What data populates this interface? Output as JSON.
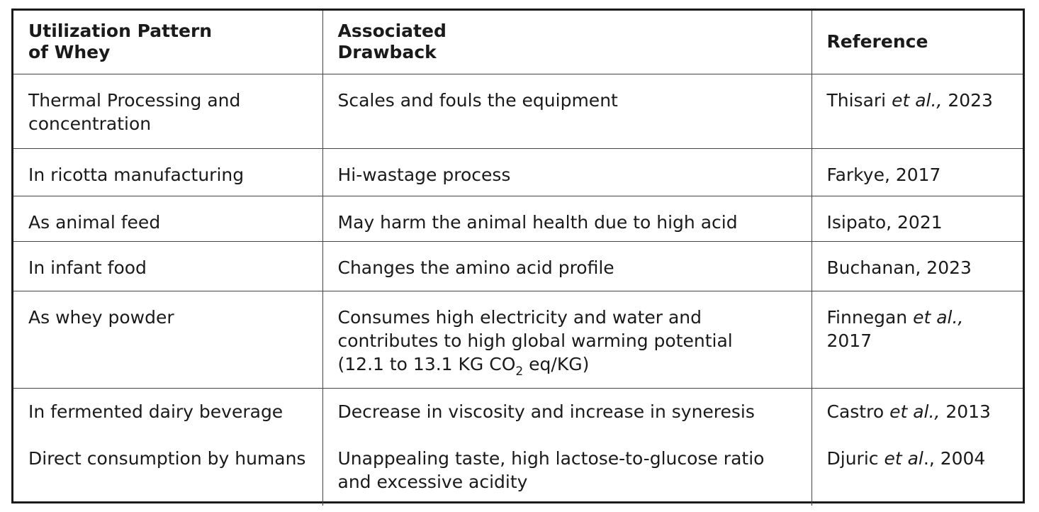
{
  "headers": {
    "col1": [
      "Utilization Pattern",
      "of Whey"
    ],
    "col2": [
      "Associated",
      "Drawback"
    ],
    "col3": "Reference"
  },
  "rows": [
    {
      "pattern": "Thermal Processing and concentration",
      "drawback": "Scales and fouls the equipment",
      "ref_author": "Thisari",
      "ref_etal": "et al.,",
      "ref_year": "2023"
    },
    {
      "pattern": "In ricotta manufacturing",
      "drawback": "Hi-wastage process",
      "ref_author": "Farkye, 2017"
    },
    {
      "pattern": "As animal feed",
      "drawback": "May harm the animal health due to high acid",
      "ref_author": "Isipato, 2021"
    },
    {
      "pattern": "In infant food",
      "drawback": "Changes the amino acid profile",
      "ref_author": "Buchanan, 2023"
    },
    {
      "pattern": "As whey powder",
      "drawback_lines": [
        "Consumes high electricity and water and",
        "contributes to high global warming potential"
      ],
      "drawback_formula": {
        "pre": "(12.1 to 13.1 KG CO",
        "sub": "2",
        "post": " eq/KG)"
      },
      "ref_author": "Finnegan",
      "ref_etal": "et al.,",
      "ref_year": "2017"
    },
    {
      "pattern": "In fermented dairy beverage",
      "drawback": "Decrease in viscosity and increase in syneresis",
      "ref_author": "Castro",
      "ref_etal": "et al.,",
      "ref_year": "2013"
    },
    {
      "pattern": "Direct consumption by humans",
      "drawback": "Unappealing taste, high lactose-to-glucose ratio and excessive acidity",
      "ref_author": "Djuric",
      "ref_etal": "et al",
      "ref_year": "., 2004"
    }
  ]
}
